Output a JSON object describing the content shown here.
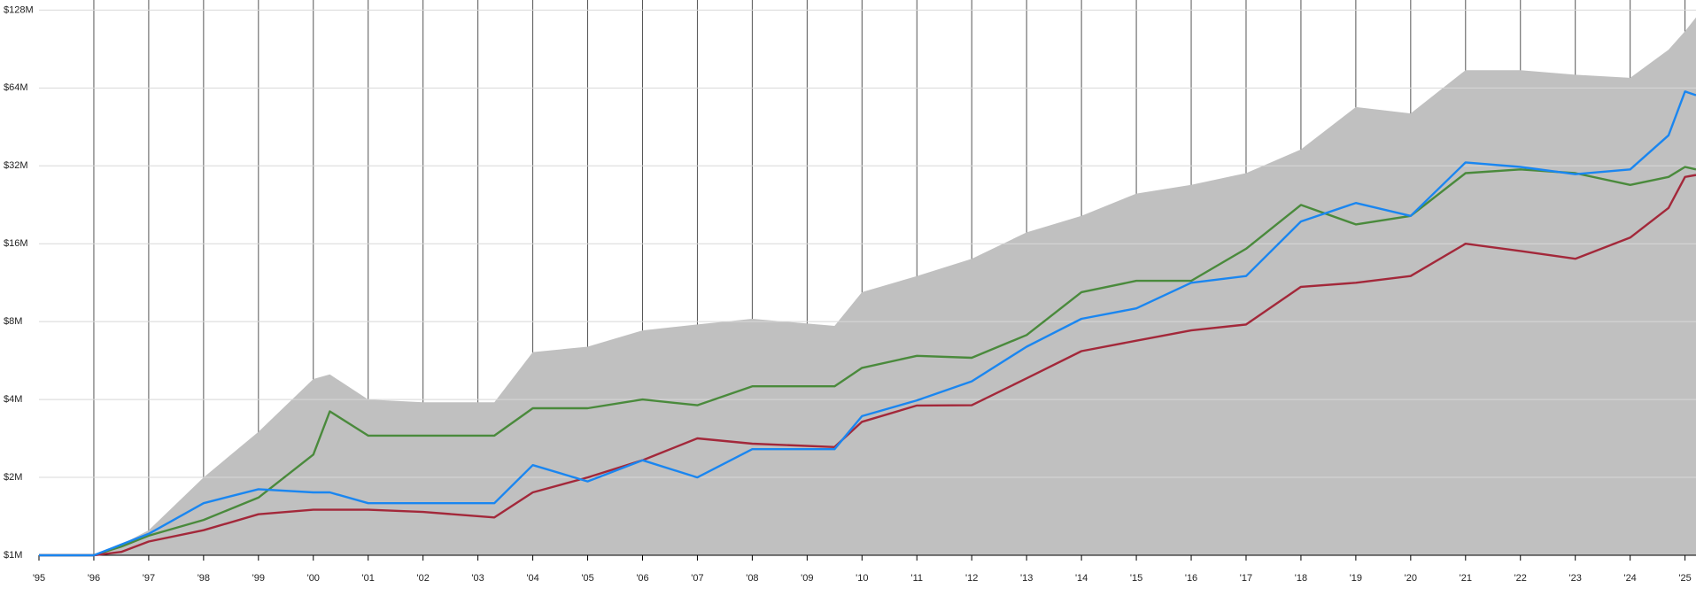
{
  "chart_data": {
    "type": "line",
    "log_scale": true,
    "grid": true,
    "x": [
      1995,
      1996,
      1996.5,
      1997,
      1998,
      1999,
      2000,
      2000.3,
      2001,
      2002,
      2003.3,
      2004,
      2005,
      2006,
      2007,
      2008,
      2009.5,
      2010,
      2011,
      2012,
      2013,
      2014,
      2015,
      2016,
      2017,
      2018,
      2019,
      2020,
      2021,
      2022,
      2023,
      2024,
      2024.7,
      2025,
      2025.2
    ],
    "xlim": [
      1995,
      2025.2
    ],
    "xticks": [
      {
        "value": 1995,
        "label": "'95"
      },
      {
        "value": 1996,
        "label": "'96"
      },
      {
        "value": 1997,
        "label": "'97"
      },
      {
        "value": 1998,
        "label": "'98"
      },
      {
        "value": 1999,
        "label": "'99"
      },
      {
        "value": 2000,
        "label": "'00"
      },
      {
        "value": 2001,
        "label": "'01"
      },
      {
        "value": 2002,
        "label": "'02"
      },
      {
        "value": 2003,
        "label": "'03"
      },
      {
        "value": 2004,
        "label": "'04"
      },
      {
        "value": 2005,
        "label": "'05"
      },
      {
        "value": 2006,
        "label": "'06"
      },
      {
        "value": 2007,
        "label": "'07"
      },
      {
        "value": 2008,
        "label": "'08"
      },
      {
        "value": 2009,
        "label": "'09"
      },
      {
        "value": 2010,
        "label": "'10"
      },
      {
        "value": 2011,
        "label": "'11"
      },
      {
        "value": 2012,
        "label": "'12"
      },
      {
        "value": 2013,
        "label": "'13"
      },
      {
        "value": 2014,
        "label": "'14"
      },
      {
        "value": 2015,
        "label": "'15"
      },
      {
        "value": 2016,
        "label": "'16"
      },
      {
        "value": 2017,
        "label": "'17"
      },
      {
        "value": 2018,
        "label": "'18"
      },
      {
        "value": 2019,
        "label": "'19"
      },
      {
        "value": 2020,
        "label": "'20"
      },
      {
        "value": 2021,
        "label": "'21"
      },
      {
        "value": 2022,
        "label": "'22"
      },
      {
        "value": 2023,
        "label": "'23"
      },
      {
        "value": 2024,
        "label": "'24"
      },
      {
        "value": 2025,
        "label": "'25"
      }
    ],
    "ylim": [
      1000000,
      140000000
    ],
    "yticks": [
      {
        "value": 1000000,
        "label": "$1M"
      },
      {
        "value": 2000000,
        "label": "$2M"
      },
      {
        "value": 4000000,
        "label": "$4M"
      },
      {
        "value": 8000000,
        "label": "$8M"
      },
      {
        "value": 16000000,
        "label": "$16M"
      },
      {
        "value": 32000000,
        "label": "$32M"
      },
      {
        "value": 64000000,
        "label": "$64M"
      },
      {
        "value": 128000000,
        "label": "$128M"
      }
    ],
    "series": [
      {
        "kind": "area",
        "color": "#c0c0c0",
        "values": [
          1000000,
          1000000,
          1100000,
          1250000,
          2000000,
          3000000,
          4800000,
          5000000,
          4000000,
          3900000,
          3900000,
          6100000,
          6400000,
          7400000,
          7800000,
          8200000,
          7700000,
          10400000,
          12000000,
          14000000,
          17700000,
          20500000,
          25000000,
          27000000,
          30000000,
          37000000,
          54000000,
          51000000,
          75000000,
          75000000,
          72000000,
          70000000,
          90000000,
          106000000,
          120000000
        ]
      },
      {
        "kind": "line",
        "color": "#4a8a3c",
        "values": [
          1000000,
          1000000,
          1080000,
          1190000,
          1370000,
          1670000,
          2450000,
          3600000,
          2900000,
          2900000,
          2900000,
          3700000,
          3700000,
          4000000,
          3800000,
          4500000,
          4500000,
          5300000,
          5900000,
          5800000,
          7100000,
          10400000,
          11500000,
          11500000,
          15300000,
          22600000,
          19000000,
          20500000,
          30000000,
          31000000,
          30000000,
          27000000,
          29000000,
          31700000,
          31000000
        ]
      },
      {
        "kind": "line",
        "color": "#a3283a",
        "values": [
          1000000,
          1000000,
          1030000,
          1130000,
          1250000,
          1440000,
          1500000,
          1500000,
          1500000,
          1470000,
          1400000,
          1750000,
          2000000,
          2330000,
          2830000,
          2700000,
          2620000,
          3280000,
          3790000,
          3800000,
          4830000,
          6150000,
          6750000,
          7400000,
          7800000,
          10900000,
          11300000,
          12000000,
          16000000,
          15000000,
          14000000,
          16900000,
          22000000,
          29000000,
          29500000
        ]
      },
      {
        "kind": "line",
        "color": "#1a86f0",
        "values": [
          1000000,
          1000000,
          1100000,
          1210000,
          1590000,
          1800000,
          1750000,
          1750000,
          1590000,
          1590000,
          1590000,
          2230000,
          1930000,
          2330000,
          2000000,
          2570000,
          2570000,
          3450000,
          3970000,
          4700000,
          6400000,
          8200000,
          9000000,
          11300000,
          12000000,
          19500000,
          23000000,
          20500000,
          33000000,
          31700000,
          29700000,
          31000000,
          42000000,
          62000000,
          60000000
        ]
      }
    ]
  }
}
